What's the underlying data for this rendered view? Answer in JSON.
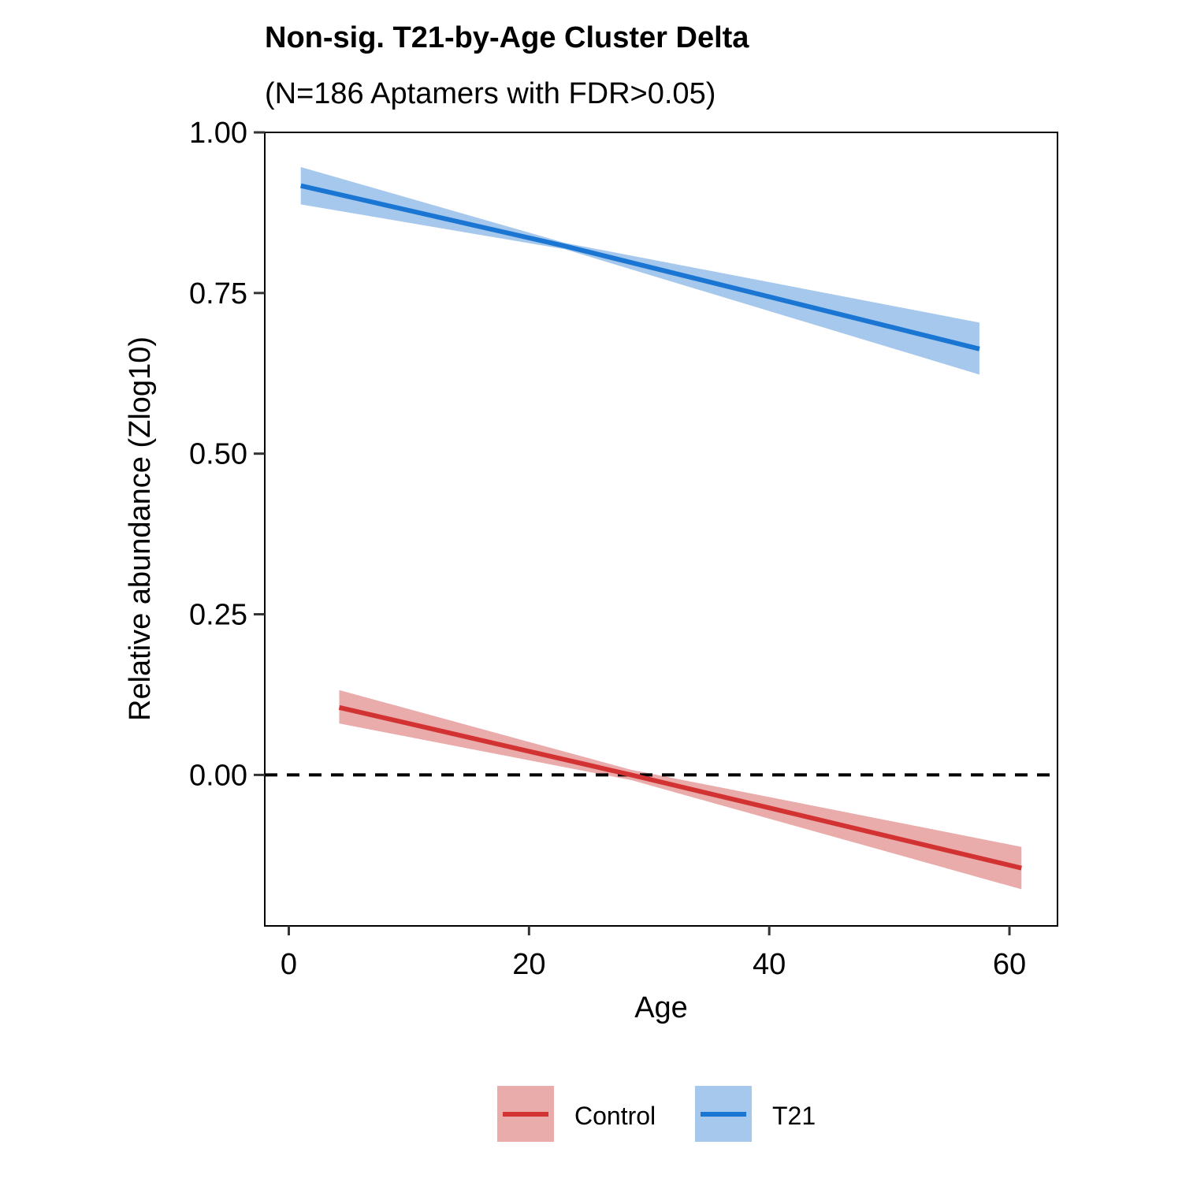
{
  "chart_data": {
    "type": "line",
    "title": "Non-sig. T21-by-Age Cluster Delta",
    "subtitle": "(N=186 Aptamers with FDR>0.05)",
    "xlabel": "Age",
    "ylabel": "Relative abundance (Zlog10)",
    "xlim": [
      -2,
      64
    ],
    "ylim": [
      -0.235,
      1.0
    ],
    "xticks": [
      0,
      20,
      40,
      60
    ],
    "xtick_labels": [
      "0",
      "20",
      "40",
      "60"
    ],
    "yticks": [
      0.0,
      0.25,
      0.5,
      0.75,
      1.0
    ],
    "ytick_labels": [
      "0.00",
      "0.25",
      "0.50",
      "0.75",
      "1.00"
    ],
    "reference_line": {
      "y": 0,
      "style": "dashed"
    },
    "grid": false,
    "legend_position": "bottom",
    "series": [
      {
        "name": "Control",
        "color": "#d23232",
        "band_color": "#eaabab",
        "x": [
          4.2,
          28.5,
          61.0
        ],
        "y": [
          0.105,
          0.0,
          -0.145
        ],
        "ci_lower": [
          0.08,
          -0.008,
          -0.178
        ],
        "ci_upper": [
          0.132,
          0.008,
          -0.112
        ]
      },
      {
        "name": "T21",
        "color": "#1a76d2",
        "band_color": "#a6c8ec",
        "x": [
          1.0,
          23.0,
          57.5
        ],
        "y": [
          0.917,
          0.823,
          0.663
        ],
        "ci_lower": [
          0.888,
          0.818,
          0.623
        ],
        "ci_upper": [
          0.946,
          0.828,
          0.704
        ]
      }
    ]
  }
}
